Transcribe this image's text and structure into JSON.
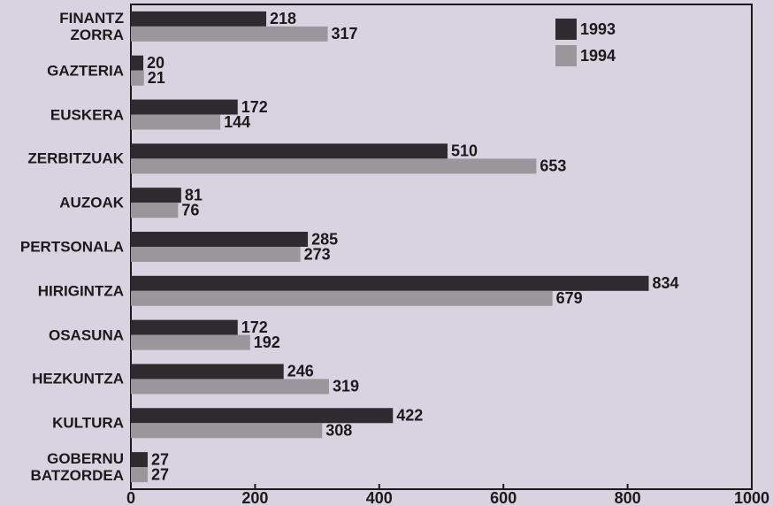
{
  "chart_data": {
    "type": "bar",
    "orientation": "horizontal",
    "categories": [
      "FINANTZ\nZORRA",
      "GAZTERIA",
      "EUSKERA",
      "ZERBITZUAK",
      "AUZOAK",
      "PERTSONALA",
      "HIRIGINTZA",
      "OSASUNA",
      "HEZKUNTZA",
      "KULTURA",
      "GOBERNU\nBATZORDEA"
    ],
    "series": [
      {
        "name": "1993",
        "color": "#2e2b30",
        "values": [
          218,
          20,
          172,
          510,
          81,
          285,
          834,
          172,
          246,
          422,
          27
        ]
      },
      {
        "name": "1994",
        "color": "#9a979c",
        "values": [
          317,
          21,
          144,
          653,
          76,
          273,
          679,
          192,
          319,
          308,
          27
        ]
      }
    ],
    "xlim": [
      0,
      1000
    ],
    "xticks": [
      0,
      200,
      400,
      600,
      800,
      1000
    ],
    "legend": "upper right",
    "data_labels": true
  }
}
